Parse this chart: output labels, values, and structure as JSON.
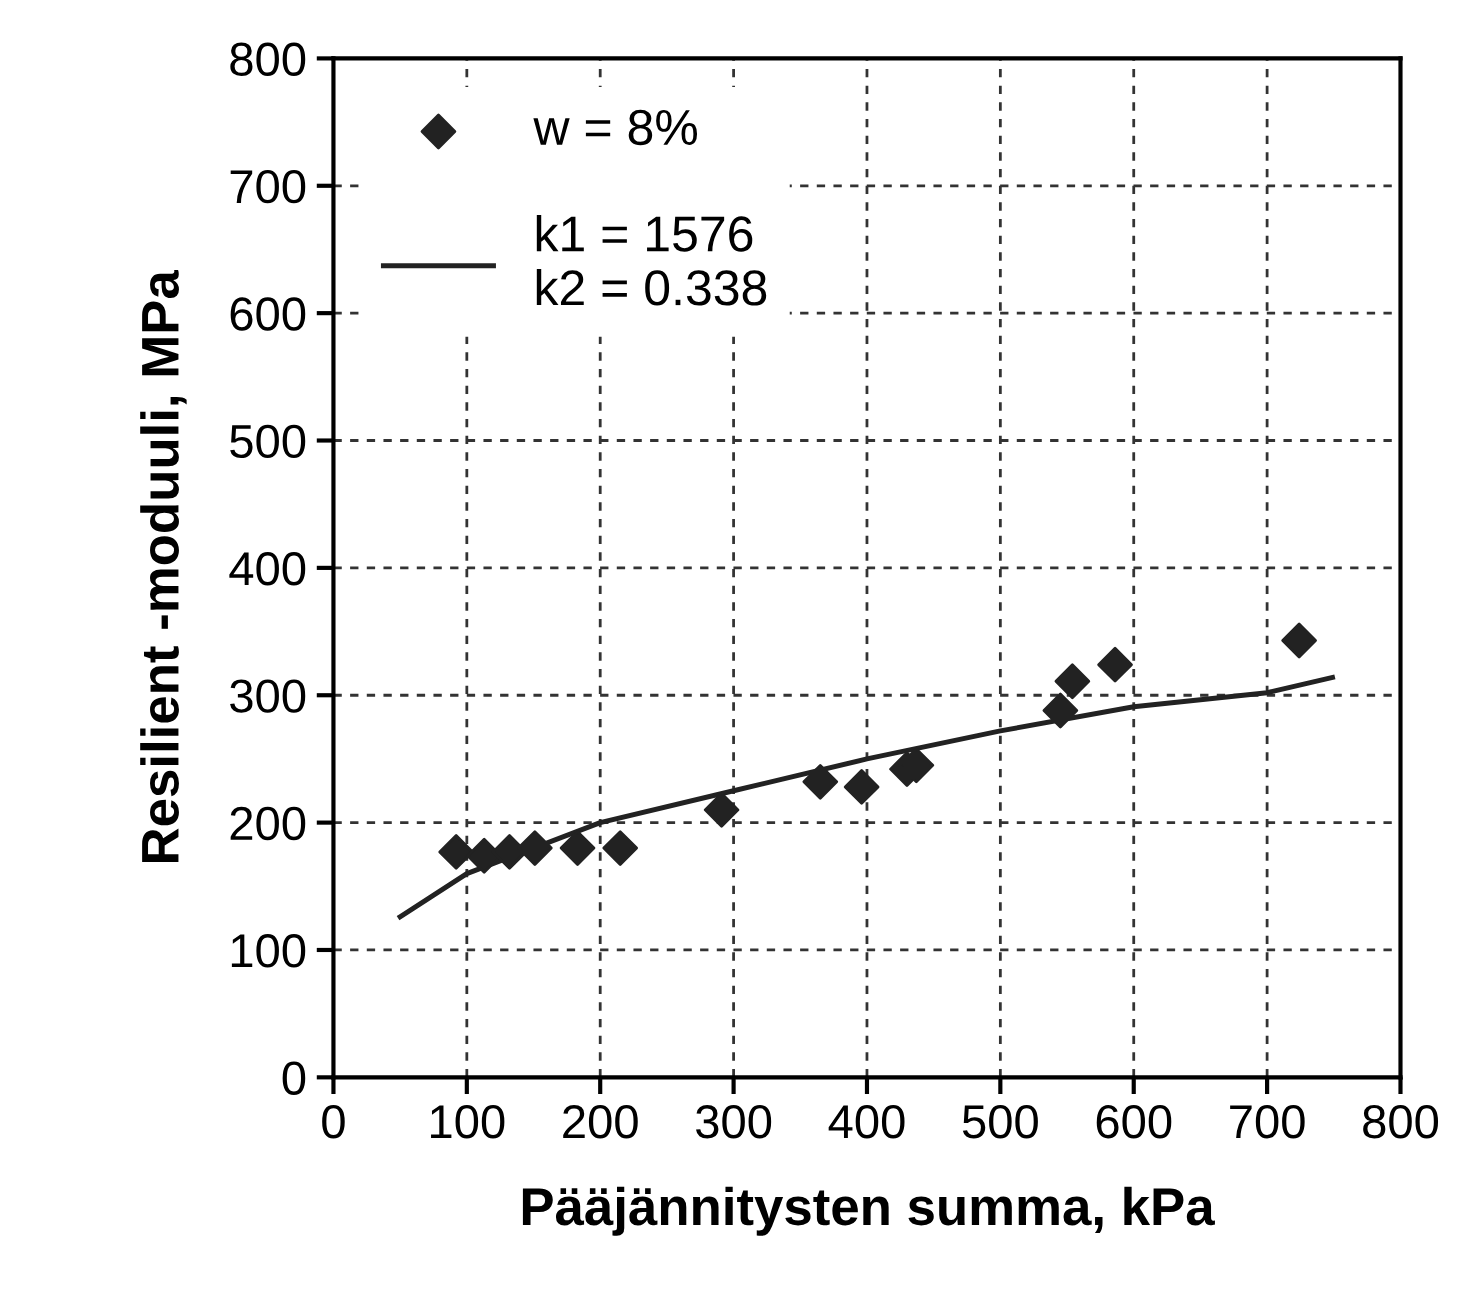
{
  "chart_data": {
    "type": "scatter",
    "xlabel": "Pääjännitysten summa, kPa",
    "ylabel": "Resilient -moduuli, MPa",
    "xlim": [
      0,
      800
    ],
    "ylim": [
      0,
      800
    ],
    "xticks": [
      0,
      100,
      200,
      300,
      400,
      500,
      600,
      700,
      800
    ],
    "yticks": [
      0,
      100,
      200,
      300,
      400,
      500,
      600,
      700,
      800
    ],
    "grid": true,
    "legend": "top left",
    "series": [
      {
        "name": "w = 8%",
        "marker": "diamond",
        "color": "#222222",
        "x": [
          92,
          113,
          132,
          151,
          183,
          215,
          291,
          365,
          396,
          430,
          437,
          545,
          554,
          586,
          724
        ],
        "values": [
          177,
          174,
          177,
          180,
          180,
          180,
          210,
          232,
          228,
          242,
          245,
          288,
          311,
          324,
          343
        ]
      },
      {
        "name": "k1 = 1576\nk2 = 0.338",
        "type": "line",
        "marker": "none",
        "color": "#222222",
        "x": [
          50,
          100,
          200,
          300,
          400,
          500,
          600,
          700,
          749
        ],
        "values": [
          126,
          160,
          200,
          225,
          250,
          272,
          291,
          302,
          314
        ]
      }
    ]
  }
}
